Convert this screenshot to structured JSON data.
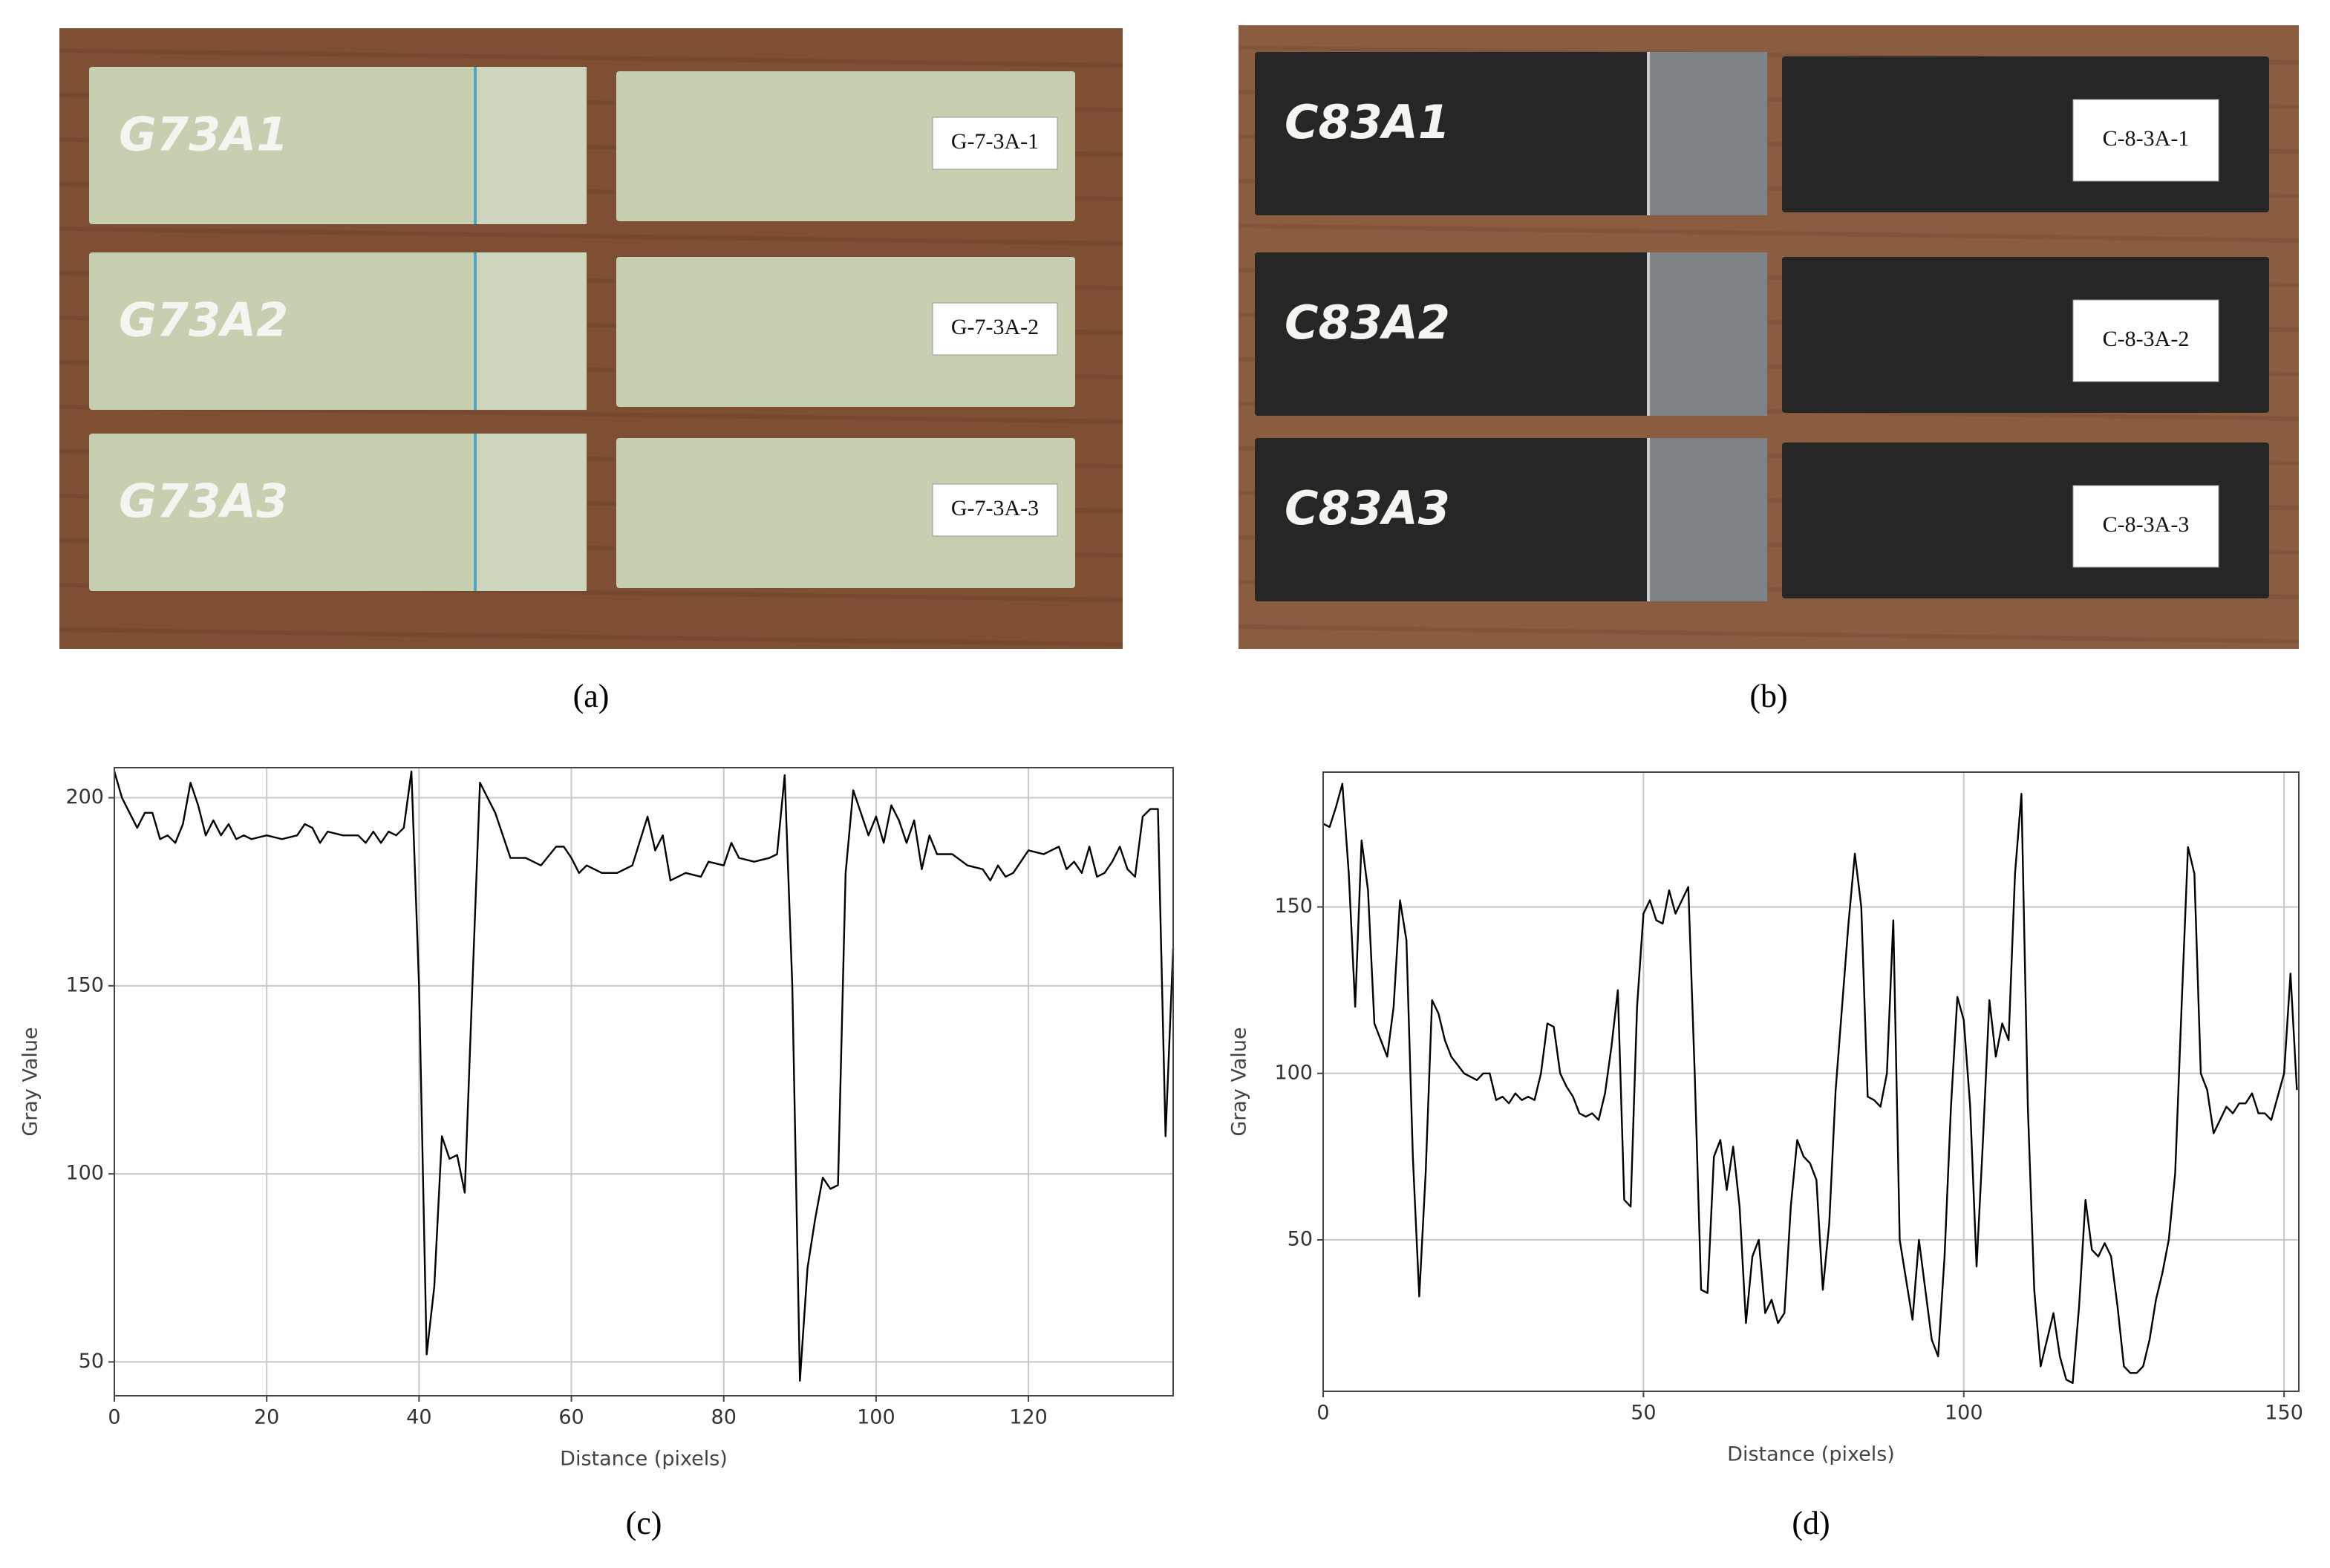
{
  "panels": [
    {
      "label": "(a)",
      "specimens": [
        {
          "marking": "G73A1",
          "tag": "G-7-3A-1"
        },
        {
          "marking": "G73A2",
          "tag": "G-7-3A-2"
        },
        {
          "marking": "G73A3",
          "tag": "G-7-3A-3"
        }
      ]
    },
    {
      "label": "(b)",
      "specimens": [
        {
          "marking": "C83A1",
          "tag": "C-8-3A-1"
        },
        {
          "marking": "C83A2",
          "tag": "C-8-3A-2"
        },
        {
          "marking": "C83A3",
          "tag": "C-8-3A-3"
        }
      ]
    },
    {
      "label": "(c)"
    },
    {
      "label": "(d)"
    }
  ],
  "chart_data": [
    {
      "type": "line",
      "x_label": "Distance (pixels)",
      "y_label": "Gray Value",
      "color": "#000000",
      "grid": true,
      "xlim": [
        0,
        139
      ],
      "ylim": [
        41,
        208
      ],
      "xticks": [
        0,
        20,
        40,
        60,
        80,
        100,
        120
      ],
      "yticks": [
        50,
        100,
        150,
        200
      ],
      "x": [
        0,
        1,
        2,
        3,
        4,
        5,
        6,
        7,
        8,
        9,
        10,
        11,
        12,
        13,
        14,
        15,
        16,
        17,
        18,
        20,
        22,
        24,
        25,
        26,
        27,
        28,
        30,
        32,
        33,
        34,
        35,
        36,
        37,
        38,
        39,
        40,
        41,
        42,
        43,
        44,
        45,
        46,
        47,
        48,
        49,
        50,
        51,
        52,
        54,
        56,
        58,
        59,
        60,
        61,
        62,
        64,
        66,
        68,
        70,
        71,
        72,
        73,
        75,
        77,
        78,
        80,
        81,
        82,
        84,
        86,
        87,
        88,
        89,
        90,
        91,
        92,
        93,
        94,
        95,
        96,
        97,
        98,
        99,
        100,
        101,
        102,
        103,
        104,
        105,
        106,
        107,
        108,
        110,
        112,
        114,
        115,
        116,
        117,
        118,
        120,
        122,
        124,
        125,
        126,
        127,
        128,
        129,
        130,
        131,
        132,
        133,
        134,
        135,
        136,
        137,
        138,
        139
      ],
      "values": [
        207,
        200,
        196,
        192,
        196,
        196,
        189,
        190,
        188,
        193,
        204,
        198,
        190,
        194,
        190,
        193,
        189,
        190,
        189,
        190,
        189,
        190,
        193,
        192,
        188,
        191,
        190,
        190,
        188,
        191,
        188,
        191,
        190,
        192,
        207,
        150,
        52,
        70,
        110,
        104,
        105,
        95,
        150,
        204,
        200,
        196,
        190,
        184,
        184,
        182,
        187,
        187,
        184,
        180,
        182,
        180,
        180,
        182,
        195,
        186,
        190,
        178,
        180,
        179,
        183,
        182,
        188,
        184,
        183,
        184,
        185,
        206,
        150,
        45,
        75,
        88,
        99,
        96,
        97,
        180,
        202,
        196,
        190,
        195,
        188,
        198,
        194,
        188,
        194,
        181,
        190,
        185,
        185,
        182,
        181,
        178,
        182,
        179,
        180,
        186,
        185,
        187,
        181,
        183,
        180,
        187,
        179,
        180,
        183,
        187,
        181,
        179,
        195,
        197,
        197,
        110,
        160
      ]
    },
    {
      "type": "line",
      "x_label": "Distance (pixels)",
      "y_label": "Gray Value",
      "color": "#000000",
      "grid": true,
      "xlim": [
        0,
        152.3
      ],
      "ylim": [
        4.5,
        190.5
      ],
      "xticks": [
        0,
        50,
        100,
        150
      ],
      "yticks": [
        50,
        100,
        150
      ],
      "x": [
        0,
        1,
        2,
        3,
        4,
        5,
        6,
        7,
        8,
        9,
        10,
        11,
        12,
        13,
        14,
        15,
        16,
        17,
        18,
        19,
        20,
        22,
        24,
        25,
        26,
        27,
        28,
        29,
        30,
        31,
        32,
        33,
        34,
        35,
        36,
        37,
        38,
        39,
        40,
        41,
        42,
        43,
        44,
        45,
        46,
        47,
        48,
        49,
        50,
        51,
        52,
        53,
        54,
        55,
        56,
        57,
        58,
        59,
        60,
        61,
        62,
        63,
        64,
        65,
        66,
        67,
        68,
        69,
        70,
        71,
        72,
        73,
        74,
        75,
        76,
        77,
        78,
        79,
        80,
        81,
        82,
        83,
        84,
        85,
        86,
        87,
        88,
        89,
        90,
        91,
        92,
        93,
        94,
        95,
        96,
        97,
        98,
        99,
        100,
        101,
        102,
        103,
        104,
        105,
        106,
        107,
        108,
        109,
        110,
        111,
        112,
        113,
        114,
        115,
        116,
        117,
        118,
        119,
        120,
        121,
        122,
        123,
        124,
        125,
        126,
        127,
        128,
        129,
        130,
        131,
        132,
        133,
        134,
        135,
        136,
        137,
        138,
        139,
        140,
        141,
        142,
        143,
        144,
        145,
        146,
        147,
        148,
        149,
        150,
        151,
        152
      ],
      "values": [
        175,
        174,
        180,
        187,
        160,
        120,
        170,
        155,
        115,
        110,
        105,
        120,
        152,
        140,
        75,
        33,
        70,
        122,
        118,
        110,
        105,
        100,
        98,
        100,
        100,
        92,
        93,
        91,
        94,
        92,
        93,
        92,
        100,
        115,
        114,
        100,
        96,
        93,
        88,
        87,
        88,
        86,
        94,
        108,
        125,
        62,
        60,
        120,
        148,
        152,
        146,
        145,
        155,
        148,
        152,
        156,
        100,
        35,
        34,
        75,
        80,
        65,
        78,
        60,
        25,
        45,
        50,
        28,
        32,
        25,
        28,
        60,
        80,
        75,
        73,
        68,
        35,
        55,
        95,
        120,
        145,
        166,
        150,
        93,
        92,
        90,
        100,
        146,
        50,
        38,
        26,
        50,
        35,
        20,
        15,
        45,
        90,
        123,
        116,
        90,
        42,
        80,
        122,
        105,
        115,
        110,
        160,
        184,
        90,
        35,
        12,
        20,
        28,
        15,
        8,
        7,
        30,
        62,
        47,
        45,
        49,
        45,
        30,
        12,
        10,
        10,
        12,
        20,
        32,
        40,
        50,
        70,
        120,
        168,
        160,
        100,
        95,
        82,
        86,
        90,
        88,
        91,
        91,
        94,
        88,
        88,
        86,
        93,
        100,
        130,
        95
      ]
    }
  ]
}
